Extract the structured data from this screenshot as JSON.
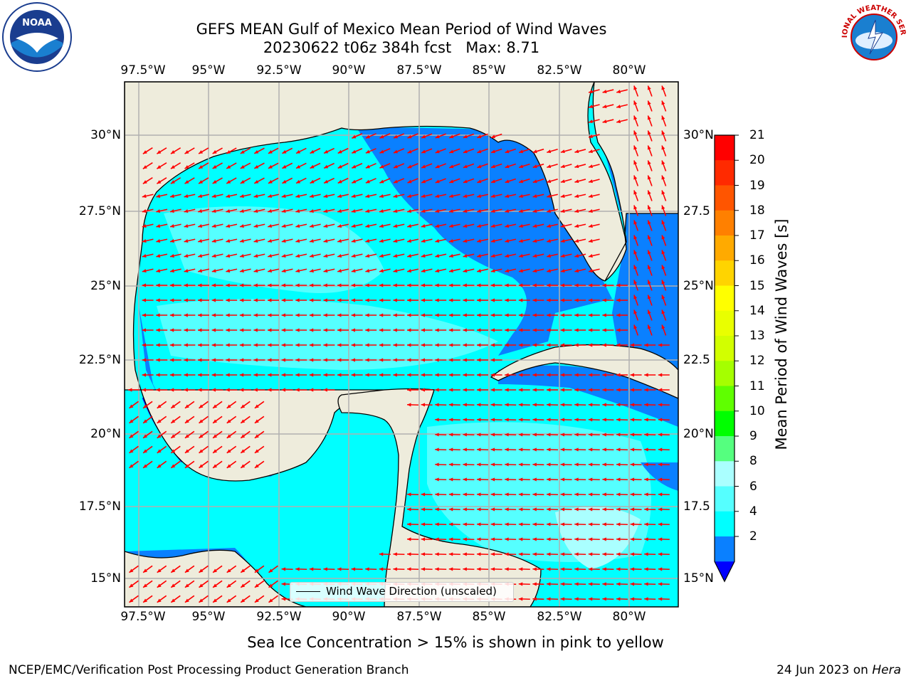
{
  "header": {
    "title_line1": "GEFS MEAN Gulf of Mexico Mean Period of Wind Waves",
    "title_line2": "20230622 t06z 384h fcst   Max: 8.71"
  },
  "logos": {
    "left": "noaa-logo",
    "right": "nws-logo",
    "left_text": "NOAA",
    "right_text": "NATIONAL WEATHER SERVICE"
  },
  "map": {
    "lon_labels": [
      "97.5°W",
      "95°W",
      "92.5°W",
      "90°W",
      "87.5°W",
      "85°W",
      "82.5°W",
      "80°W"
    ],
    "lat_labels_left": [
      "30°N",
      "27.5°N",
      "25°N",
      "22.5°N",
      "20°N",
      "17.5°N",
      "15°N"
    ],
    "lat_labels_right": [
      "30°N",
      "27.5",
      "25°N",
      "22.5",
      "20°N",
      "17.5",
      "15°N"
    ],
    "colors": {
      "land": "#eeecdc",
      "coast": "#000000",
      "grid": "#b0b0b0",
      "arrow": "#ff0000",
      "band_2_4": "#0a80ff",
      "band_4_6": "#00ffff",
      "band_6_8": "#55ffff",
      "band_below_2": "#0000ff"
    },
    "legend_label": "Wind Wave Direction (unscaled)"
  },
  "colorbar": {
    "label": "Mean Period of Wind Waves [s]",
    "ticks": [
      "21",
      "20",
      "19",
      "18",
      "17",
      "16",
      "15",
      "14",
      "13",
      "12",
      "11",
      "10",
      "9",
      "8",
      "6",
      "4",
      "2"
    ],
    "colors": [
      "#ff0000",
      "#ff2a00",
      "#ff5500",
      "#ff8000",
      "#ffaa00",
      "#ffd400",
      "#ffff00",
      "#e9ff00",
      "#d2ff00",
      "#a5ff00",
      "#5fff00",
      "#00ff00",
      "#55ff7f",
      "#aaffff",
      "#55ffff",
      "#00ffff",
      "#0a80ff"
    ],
    "under_color": "#0000ff"
  },
  "notes": {
    "ice": "Sea Ice Concentration > 15% is shown in pink to yellow",
    "footer_left": "NCEP/EMC/Verification Post Processing Product Generation Branch",
    "footer_right_date": "24 Jun 2023 on ",
    "footer_right_host": "Hera"
  }
}
